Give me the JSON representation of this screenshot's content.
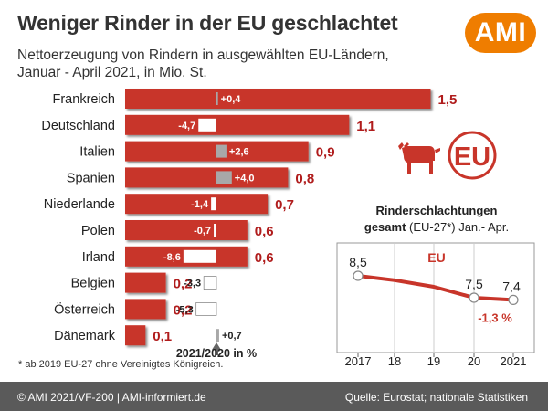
{
  "header": {
    "title": "Weniger Rinder in der EU geschlachtet",
    "subtitle_line1": "Nettoerzeugung von Rindern in ausgewählten EU-Ländern,",
    "subtitle_line2": "Januar - April 2021, in Mio. St."
  },
  "logo": {
    "text": "AMI"
  },
  "footnote": "* ab 2019 EU-27 ohne Vereinigtes Königreich.",
  "footer": {
    "left": "© AMI 2021/VF-200 | AMI-informiert.de",
    "right": "Quelle: Eurostat; nationale Statistiken"
  },
  "colors": {
    "bar": "#c8352a",
    "change_neg": "#ffffff",
    "change_pos": "#a8a8a8",
    "value_text": "#b01c1c",
    "line": "#c8352a",
    "eu_text": "#c8352a"
  },
  "icons": [
    "cow-icon",
    "eu-badge-icon",
    "arrow-up-icon"
  ],
  "chart_data": [
    {
      "type": "bar",
      "categories": [
        "Frankreich",
        "Deutschland",
        "Italien",
        "Spanien",
        "Niederlande",
        "Polen",
        "Irland",
        "Belgien",
        "Österreich",
        "Dänemark"
      ],
      "values": [
        1.5,
        1.1,
        0.9,
        0.8,
        0.7,
        0.6,
        0.6,
        0.2,
        0.2,
        0.1
      ],
      "value_labels": [
        "1,5",
        "1,1",
        "0,9",
        "0,8",
        "0,7",
        "0,6",
        "0,6",
        "0,2",
        "0,2",
        "0,1"
      ],
      "change_2021_vs_2020_pct": [
        0.4,
        -4.7,
        2.6,
        4.0,
        -1.4,
        -0.7,
        -8.6,
        -3.3,
        -5.3,
        0.7
      ],
      "change_labels": [
        "+0,4",
        "-4,7",
        "+2,6",
        "+4,0",
        "-1,4",
        "-0,7",
        "-8,6",
        "-3,3",
        "-5,3",
        "+0,7"
      ],
      "change_caption": "2021/2020 in %",
      "xlim": [
        0,
        1.6
      ]
    },
    {
      "type": "line",
      "title_bold": "Rinderschlachtungen",
      "title_bold2": "gesamt",
      "title_rest": " (EU-27*) Jan.- Apr.",
      "series": [
        {
          "name": "EU",
          "x": [
            2017,
            2018,
            2019,
            2020,
            2021
          ],
          "values": [
            8.5,
            8.3,
            8.0,
            7.5,
            7.4
          ]
        }
      ],
      "point_labels": [
        {
          "x": 2017,
          "label": "8,5"
        },
        {
          "x": 2020,
          "label": "7,5"
        },
        {
          "x": 2021,
          "label": "7,4"
        }
      ],
      "change_label": "-1,3 %",
      "x_tick_labels": [
        "2017",
        "18",
        "19",
        "20",
        "2021"
      ],
      "ylim": [
        5,
        10
      ],
      "grid": true
    }
  ]
}
